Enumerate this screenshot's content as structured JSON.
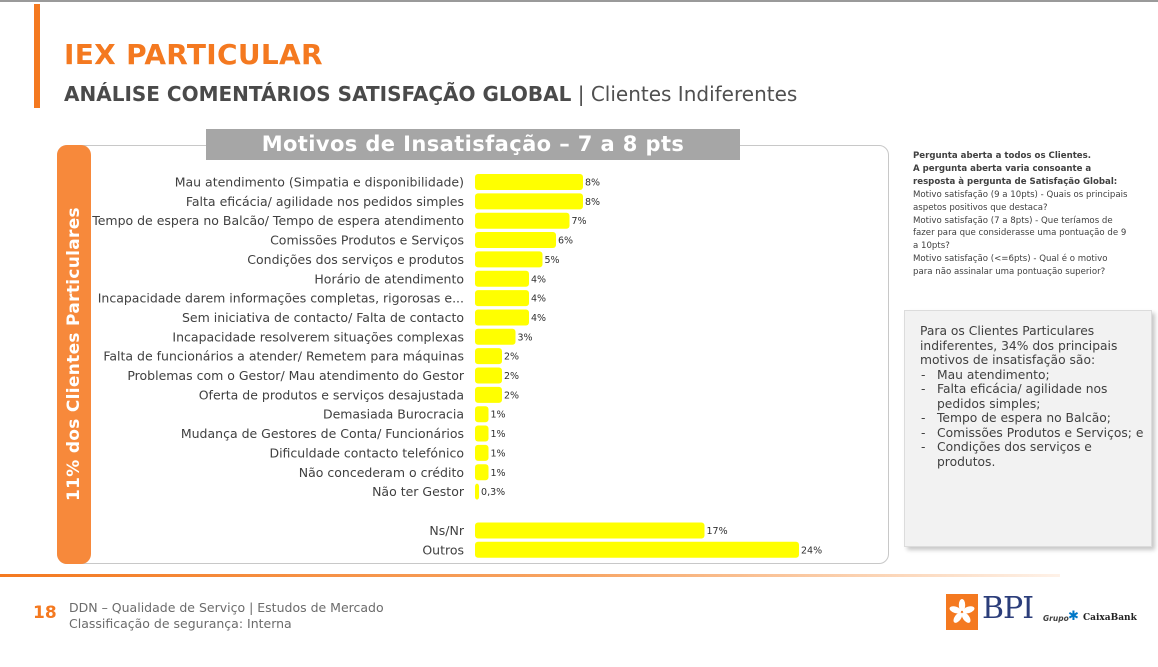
{
  "header": {
    "title": "IEX PARTICULAR",
    "subtitle_bold": "ANÁLISE COMENTÁRIOS SATISFAÇÃO GLOBAL",
    "subtitle_sep": " | ",
    "subtitle_rest": "Clientes Indiferentes"
  },
  "vertical_label": "11% dos Clientes Particulares",
  "chart_data": {
    "type": "bar",
    "orientation": "horizontal",
    "title": "Motivos de Insatisfação – 7 a 8 pts",
    "categories": [
      "Mau atendimento (Simpatia e disponibilidade)",
      "Falta eficácia/ agilidade nos pedidos simples",
      "Tempo de espera no Balcão/ Tempo de espera atendimento",
      "Comissões Produtos e Serviços",
      "Condições dos serviços e produtos",
      "Horário de atendimento",
      "Incapacidade darem informações completas, rigorosas e...",
      "Sem iniciativa de contacto/ Falta de contacto",
      "Incapacidade resolverem situações complexas",
      "Falta de funcionários a atender/ Remetem para máquinas",
      "Problemas com o Gestor/ Mau atendimento do Gestor",
      "Oferta de produtos e serviços desajustada",
      "Demasiada Burocracia",
      "Mudança de Gestores de Conta/ Funcionários",
      "Dificuldade contacto telefónico",
      "Não concederam o crédito",
      "Não ter Gestor",
      "Ns/Nr",
      "Outros"
    ],
    "values": [
      8,
      8,
      7,
      6,
      5,
      4,
      4,
      4,
      3,
      2,
      2,
      2,
      1,
      1,
      1,
      1,
      0.3,
      17,
      24
    ],
    "labels": [
      "8%",
      "8%",
      "7%",
      "6%",
      "5%",
      "4%",
      "4%",
      "4%",
      "3%",
      "2%",
      "2%",
      "2%",
      "1%",
      "1%",
      "1%",
      "1%",
      "0,3%",
      "17%",
      "24%"
    ],
    "group_break_before_index": 17,
    "bar_color": "#ffff00",
    "xlim": [
      0,
      24
    ],
    "grid": false,
    "legend": "none"
  },
  "notes": {
    "line1": "Pergunta aberta a todos os Clientes.",
    "line2": "A pergunta aberta varia consoante a resposta à pergunta de Satisfação Global:",
    "line3": "Motivo satisfação (9 a 10pts) - Quais os principais aspetos positivos que destaca?",
    "line4": "Motivo satisfação (7 a 8pts) - Que teríamos de fazer para que considerasse uma pontuação de 9 a 10pts?",
    "line5": "Motivo satisfação (<=6pts) - Qual é o motivo para não assinalar uma pontuação superior?"
  },
  "summary": {
    "intro": "Para os Clientes Particulares indiferentes, 34% dos principais motivos de insatisfação são:",
    "items": [
      "Mau atendimento;",
      "Falta eficácia/ agilidade nos pedidos simples;",
      "Tempo de espera no Balcão;",
      "Comissões Produtos e Serviços; e",
      "Condições dos serviços e produtos."
    ]
  },
  "footer": {
    "page_number": "18",
    "line1": "DDN – Qualidade de Serviço | Estudos de Mercado",
    "line2": "Classificação de segurança: Interna"
  },
  "branding": {
    "bank_name": "BPI",
    "group_label": "Grupo",
    "group_name": "CaixaBank",
    "accent_color": "#f47920",
    "logo_icon": "bpi-logo-icon",
    "group_icon": "caixabank-star-icon"
  }
}
